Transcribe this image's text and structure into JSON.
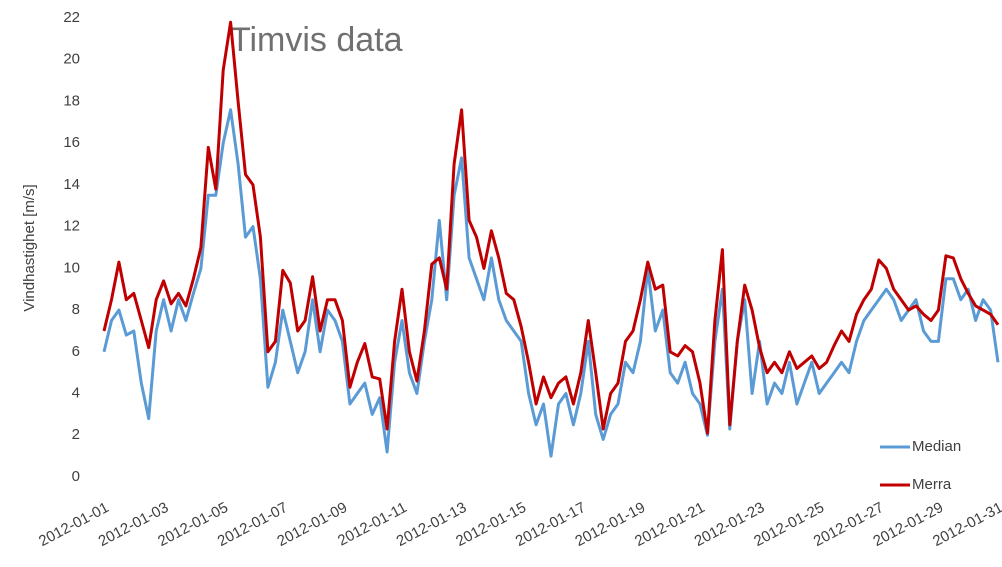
{
  "chart_data": {
    "type": "line",
    "title": "Timvis data",
    "ylabel": "Vindhastighet [m/s]",
    "x": [
      0,
      0.25,
      0.5,
      0.75,
      1,
      1.25,
      1.5,
      1.75,
      2,
      2.25,
      2.5,
      2.75,
      3,
      3.25,
      3.5,
      3.75,
      4,
      4.25,
      4.5,
      4.75,
      5,
      5.25,
      5.5,
      5.75,
      6,
      6.25,
      6.5,
      6.75,
      7,
      7.25,
      7.5,
      7.75,
      8,
      8.25,
      8.5,
      8.75,
      9,
      9.25,
      9.5,
      9.75,
      10,
      10.25,
      10.5,
      10.75,
      11,
      11.25,
      11.5,
      11.75,
      12,
      12.25,
      12.5,
      12.75,
      13,
      13.25,
      13.5,
      13.75,
      14,
      14.25,
      14.5,
      14.75,
      15,
      15.25,
      15.5,
      15.75,
      16,
      16.25,
      16.5,
      16.75,
      17,
      17.25,
      17.5,
      17.75,
      18,
      18.25,
      18.5,
      18.75,
      19,
      19.25,
      19.5,
      19.75,
      20,
      20.25,
      20.5,
      20.75,
      21,
      21.25,
      21.5,
      21.75,
      22,
      22.25,
      22.5,
      22.75,
      23,
      23.25,
      23.5,
      23.75,
      24,
      24.25,
      24.5,
      24.75,
      25,
      25.25,
      25.5,
      25.75,
      26,
      26.25,
      26.5,
      26.75,
      27,
      27.25,
      27.5,
      27.75,
      28,
      28.25,
      28.5,
      28.75,
      29,
      29.25,
      29.5,
      29.75,
      30
    ],
    "series": [
      {
        "name": "Median",
        "color": "#5b9bd5",
        "values": [
          6.0,
          7.5,
          8.0,
          6.8,
          7.0,
          4.5,
          2.8,
          7.0,
          8.5,
          7.0,
          8.5,
          7.5,
          8.8,
          10,
          13.5,
          13.5,
          16,
          17.6,
          15,
          11.5,
          12,
          9.5,
          4.3,
          5.5,
          8.0,
          6.5,
          5.0,
          6.0,
          8.5,
          6.0,
          8.0,
          7.5,
          6.5,
          3.5,
          4.0,
          4.5,
          3.0,
          3.8,
          1.2,
          5.5,
          7.5,
          5.0,
          4.0,
          6.5,
          8.5,
          12.3,
          8.5,
          13.5,
          15.3,
          10.5,
          9.5,
          8.5,
          10.5,
          8.5,
          7.5,
          7.0,
          6.5,
          4.0,
          2.5,
          3.5,
          1.0,
          3.5,
          4.0,
          2.5,
          4.0,
          6.5,
          3.0,
          1.8,
          3.0,
          3.5,
          5.5,
          5.0,
          6.5,
          10.0,
          7.0,
          8.0,
          5.0,
          4.5,
          5.5,
          4.0,
          3.5,
          2.0,
          6.5,
          9.0,
          2.3,
          6.5,
          8.5,
          4.0,
          6.5,
          3.5,
          4.5,
          4.0,
          5.5,
          3.5,
          4.5,
          5.5,
          4.0,
          4.5,
          5.0,
          5.5,
          5.0,
          6.5,
          7.5,
          8.0,
          8.5,
          9.0,
          8.5,
          7.5,
          8.0,
          8.5,
          7.0,
          6.5,
          6.5,
          9.5,
          9.5,
          8.5,
          9.0,
          7.5,
          8.5,
          8.0,
          5.5
        ]
      },
      {
        "name": "Merra",
        "color": "#c00000",
        "values": [
          7.0,
          8.5,
          10.3,
          8.5,
          8.8,
          7.5,
          6.2,
          8.5,
          9.4,
          8.3,
          8.8,
          8.2,
          9.5,
          11,
          15.8,
          13.8,
          19.5,
          21.8,
          18,
          14.5,
          14,
          11.5,
          6,
          6.5,
          9.9,
          9.3,
          7.0,
          7.5,
          9.6,
          7.0,
          8.5,
          8.5,
          7.5,
          4.3,
          5.5,
          6.4,
          4.8,
          4.7,
          2.3,
          6.5,
          9.0,
          6,
          4.6,
          7,
          10.2,
          10.5,
          9.0,
          15,
          17.6,
          12.3,
          11.5,
          10,
          11.8,
          10.5,
          8.8,
          8.5,
          7.2,
          5.5,
          3.5,
          4.8,
          3.8,
          4.5,
          4.8,
          3.5,
          5,
          7.5,
          5.0,
          2.3,
          4.0,
          4.5,
          6.5,
          7.0,
          8.5,
          10.3,
          9.0,
          9.2,
          6.0,
          5.8,
          6.3,
          6.0,
          4.5,
          2.1,
          7.5,
          10.9,
          2.5,
          6.5,
          9.2,
          8.0,
          6.2,
          5.0,
          5.5,
          5.0,
          6.0,
          5.2,
          5.5,
          5.8,
          5.2,
          5.5,
          6.3,
          7.0,
          6.5,
          7.8,
          8.5,
          9.0,
          10.4,
          10.0,
          9.0,
          8.5,
          8.0,
          8.2,
          7.8,
          7.5,
          8.0,
          10.6,
          10.5,
          9.5,
          8.8,
          8.2,
          8.0,
          7.8,
          7.3
        ]
      }
    ],
    "xlim": [
      0,
      30
    ],
    "xticks": [
      {
        "value": 0,
        "label": "2012-01-01"
      },
      {
        "value": 2,
        "label": "2012-01-03"
      },
      {
        "value": 4,
        "label": "2012-01-05"
      },
      {
        "value": 6,
        "label": "2012-01-07"
      },
      {
        "value": 8,
        "label": "2012-01-09"
      },
      {
        "value": 10,
        "label": "2012-01-11"
      },
      {
        "value": 12,
        "label": "2012-01-13"
      },
      {
        "value": 14,
        "label": "2012-01-15"
      },
      {
        "value": 16,
        "label": "2012-01-17"
      },
      {
        "value": 18,
        "label": "2012-01-19"
      },
      {
        "value": 20,
        "label": "2012-01-21"
      },
      {
        "value": 22,
        "label": "2012-01-23"
      },
      {
        "value": 24,
        "label": "2012-01-25"
      },
      {
        "value": 26,
        "label": "2012-01-27"
      },
      {
        "value": 28,
        "label": "2012-01-29"
      },
      {
        "value": 30,
        "label": "2012-01-31"
      }
    ],
    "ylim": [
      0,
      22
    ],
    "yticks": [
      0,
      2,
      4,
      6,
      8,
      10,
      12,
      14,
      16,
      18,
      20,
      22
    ],
    "grid": false,
    "legend": "lower right"
  }
}
